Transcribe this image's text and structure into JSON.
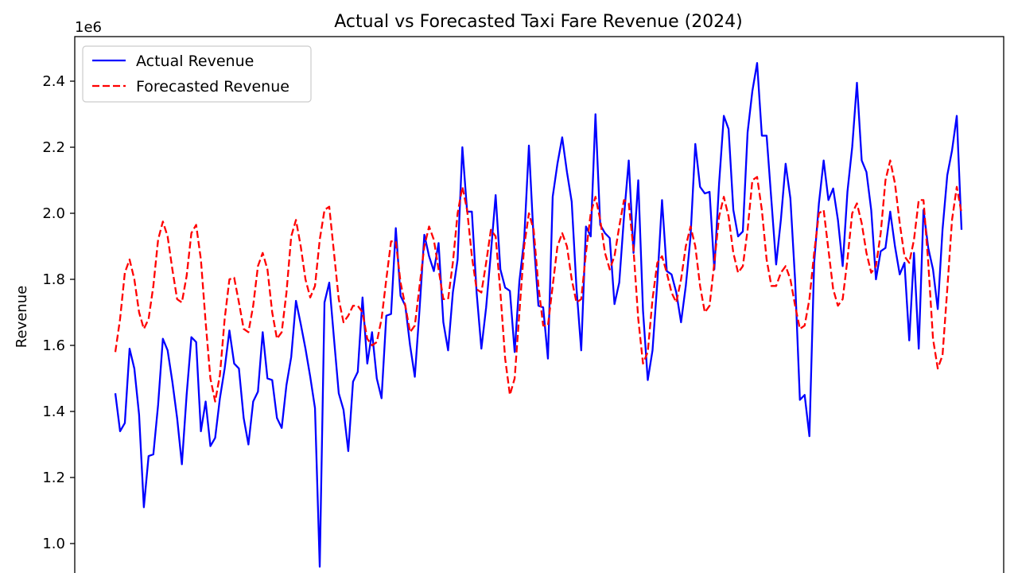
{
  "chart_data": {
    "type": "line",
    "title": "Actual vs Forecasted Taxi Fare Revenue (2024)",
    "ylabel": "Revenue",
    "xlabel": "",
    "y_offset_text": "1e6",
    "y_scale": 1000000,
    "ylim": [
      0.93,
      2.5
    ],
    "yticks": [
      1.0,
      1.2,
      1.4,
      1.6,
      1.8,
      2.0,
      2.2,
      2.4
    ],
    "grid": false,
    "legend_placement": "upper-left",
    "colors": {
      "actual": "#0000ff",
      "forecast": "#ff0000"
    },
    "series": [
      {
        "name": "Actual Revenue",
        "style": "solid",
        "values": [
          1.455,
          1.34,
          1.365,
          1.59,
          1.53,
          1.39,
          1.11,
          1.265,
          1.27,
          1.42,
          1.62,
          1.585,
          1.49,
          1.38,
          1.24,
          1.45,
          1.625,
          1.61,
          1.34,
          1.43,
          1.295,
          1.32,
          1.44,
          1.53,
          1.645,
          1.545,
          1.53,
          1.38,
          1.3,
          1.43,
          1.46,
          1.64,
          1.5,
          1.495,
          1.38,
          1.35,
          1.48,
          1.565,
          1.735,
          1.665,
          1.59,
          1.505,
          1.41,
          0.93,
          1.73,
          1.79,
          1.62,
          1.455,
          1.405,
          1.28,
          1.49,
          1.52,
          1.745,
          1.545,
          1.64,
          1.5,
          1.44,
          1.69,
          1.695,
          1.955,
          1.75,
          1.72,
          1.6,
          1.505,
          1.71,
          1.935,
          1.87,
          1.825,
          1.91,
          1.67,
          1.585,
          1.76,
          1.86,
          2.2,
          2.005,
          2.005,
          1.76,
          1.59,
          1.715,
          1.88,
          2.055,
          1.83,
          1.775,
          1.765,
          1.58,
          1.795,
          1.92,
          2.205,
          1.92,
          1.72,
          1.715,
          1.56,
          2.05,
          2.15,
          2.23,
          2.125,
          2.035,
          1.775,
          1.585,
          1.96,
          1.93,
          2.3,
          1.965,
          1.94,
          1.925,
          1.725,
          1.79,
          1.99,
          2.16,
          1.88,
          2.1,
          1.705,
          1.495,
          1.585,
          1.79,
          2.04,
          1.825,
          1.815,
          1.76,
          1.67,
          1.78,
          1.93,
          2.21,
          2.08,
          2.06,
          2.065,
          1.83,
          2.09,
          2.295,
          2.255,
          2.01,
          1.93,
          1.945,
          2.245,
          2.37,
          2.455,
          2.235,
          2.235,
          2.04,
          1.845,
          1.98,
          2.15,
          2.045,
          1.795,
          1.435,
          1.45,
          1.325,
          1.85,
          2.03,
          2.16,
          2.04,
          2.075,
          1.98,
          1.84,
          2.065,
          2.2,
          2.395,
          2.16,
          2.125,
          2.01,
          1.8,
          1.885,
          1.895,
          2.005,
          1.9,
          1.815,
          1.85,
          1.615,
          1.88,
          1.59,
          2.01,
          1.895,
          1.83,
          1.71,
          1.95,
          2.115,
          2.19,
          2.295,
          1.95
        ]
      },
      {
        "name": "Forecasted Revenue",
        "style": "dashed",
        "values": [
          1.58,
          1.68,
          1.82,
          1.86,
          1.8,
          1.7,
          1.65,
          1.68,
          1.78,
          1.92,
          1.975,
          1.93,
          1.83,
          1.74,
          1.73,
          1.81,
          1.94,
          1.965,
          1.86,
          1.67,
          1.5,
          1.43,
          1.51,
          1.68,
          1.8,
          1.805,
          1.73,
          1.65,
          1.64,
          1.72,
          1.84,
          1.88,
          1.83,
          1.7,
          1.62,
          1.64,
          1.76,
          1.93,
          1.98,
          1.9,
          1.8,
          1.745,
          1.78,
          1.92,
          2.01,
          2.02,
          1.88,
          1.74,
          1.67,
          1.69,
          1.72,
          1.72,
          1.7,
          1.62,
          1.6,
          1.61,
          1.68,
          1.8,
          1.915,
          1.915,
          1.79,
          1.72,
          1.64,
          1.66,
          1.78,
          1.9,
          1.96,
          1.92,
          1.83,
          1.74,
          1.74,
          1.85,
          2.0,
          2.08,
          2.01,
          1.87,
          1.77,
          1.76,
          1.85,
          1.95,
          1.93,
          1.76,
          1.56,
          1.45,
          1.5,
          1.7,
          1.9,
          2.0,
          1.95,
          1.78,
          1.66,
          1.66,
          1.78,
          1.9,
          1.94,
          1.9,
          1.8,
          1.73,
          1.74,
          1.88,
          2.0,
          2.05,
          1.98,
          1.88,
          1.83,
          1.87,
          1.96,
          2.04,
          2.03,
          1.89,
          1.68,
          1.545,
          1.58,
          1.74,
          1.85,
          1.87,
          1.82,
          1.76,
          1.73,
          1.8,
          1.9,
          1.96,
          1.9,
          1.78,
          1.7,
          1.72,
          1.85,
          1.99,
          2.05,
          1.99,
          1.88,
          1.82,
          1.84,
          1.95,
          2.1,
          2.11,
          2.01,
          1.86,
          1.78,
          1.78,
          1.82,
          1.84,
          1.8,
          1.72,
          1.65,
          1.66,
          1.74,
          1.88,
          2.0,
          2.01,
          1.89,
          1.77,
          1.72,
          1.74,
          1.86,
          2.0,
          2.03,
          1.97,
          1.88,
          1.82,
          1.84,
          1.94,
          2.1,
          2.16,
          2.09,
          1.97,
          1.87,
          1.85,
          1.92,
          2.04,
          2.04,
          1.85,
          1.62,
          1.53,
          1.57,
          1.77,
          1.98,
          2.08,
          2.0
        ]
      }
    ]
  }
}
